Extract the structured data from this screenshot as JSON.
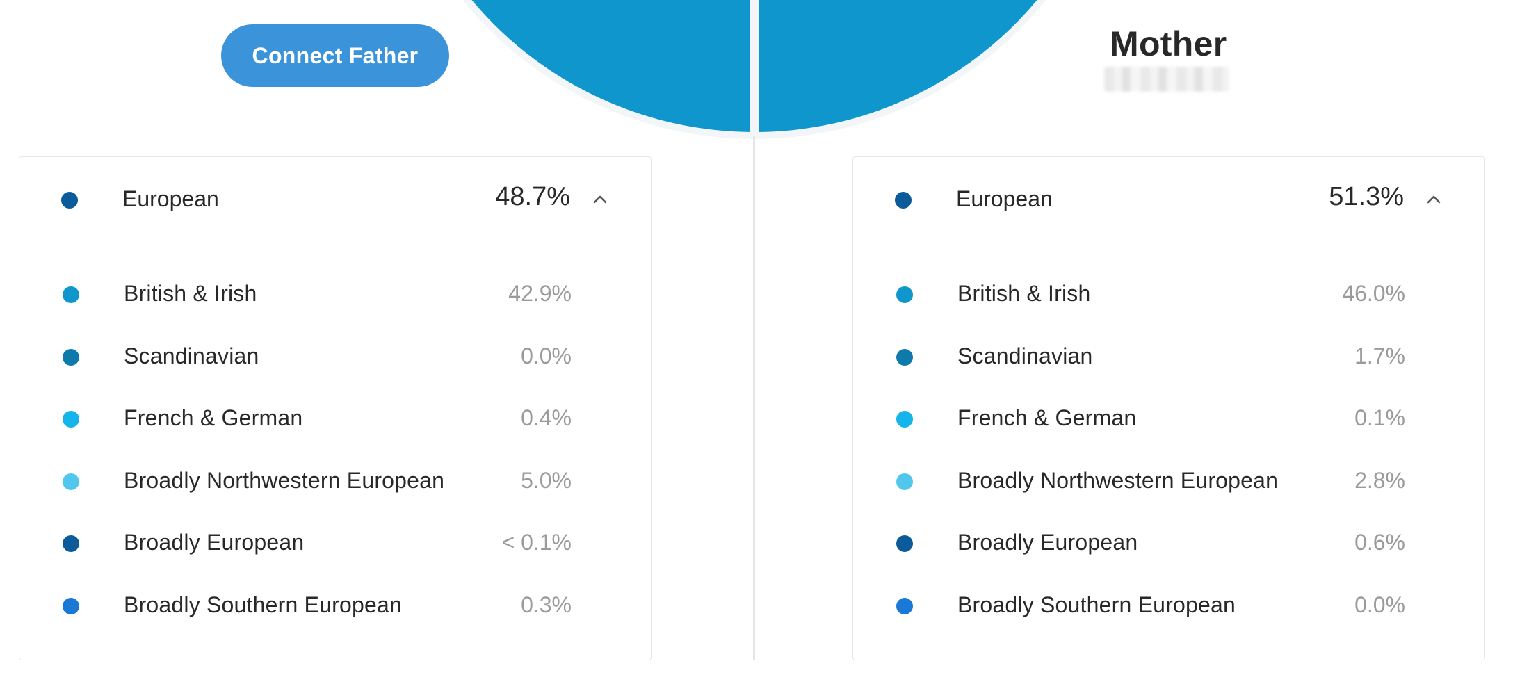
{
  "father": {
    "connect_label": "Connect Father",
    "group": {
      "label": "European",
      "value": "48.7%",
      "color": "#0b5a99"
    },
    "rows": [
      {
        "label": "British & Irish",
        "value": "42.9%",
        "color": "#0f96cc",
        "pct": 42.9
      },
      {
        "label": "Scandinavian",
        "value": "0.0%",
        "color": "#0e7aab",
        "pct": 0.0
      },
      {
        "label": "French & German",
        "value": "0.4%",
        "color": "#15b4ea",
        "pct": 0.4
      },
      {
        "label": "Broadly Northwestern European",
        "value": "5.0%",
        "color": "#52c7ee",
        "pct": 5.0
      },
      {
        "label": "Broadly European",
        "value": "< 0.1%",
        "color": "#0b5a99",
        "pct": 0.05
      },
      {
        "label": "Broadly Southern European",
        "value": "0.3%",
        "color": "#1a78d6",
        "pct": 0.3
      }
    ]
  },
  "mother": {
    "title": "Mother",
    "group": {
      "label": "European",
      "value": "51.3%",
      "color": "#0b5a99"
    },
    "rows": [
      {
        "label": "British & Irish",
        "value": "46.0%",
        "color": "#0f96cc",
        "pct": 46.0
      },
      {
        "label": "Scandinavian",
        "value": "1.7%",
        "color": "#0e7aab",
        "pct": 1.7
      },
      {
        "label": "French & German",
        "value": "0.1%",
        "color": "#15b4ea",
        "pct": 0.1
      },
      {
        "label": "Broadly Northwestern European",
        "value": "2.8%",
        "color": "#52c7ee",
        "pct": 2.8
      },
      {
        "label": "Broadly European",
        "value": "0.6%",
        "color": "#0b5a99",
        "pct": 0.6
      },
      {
        "label": "Broadly Southern European",
        "value": "0.0%",
        "color": "#1a78d6",
        "pct": 0.0
      }
    ]
  },
  "icons": {
    "collapse": "chevron-up-icon"
  }
}
